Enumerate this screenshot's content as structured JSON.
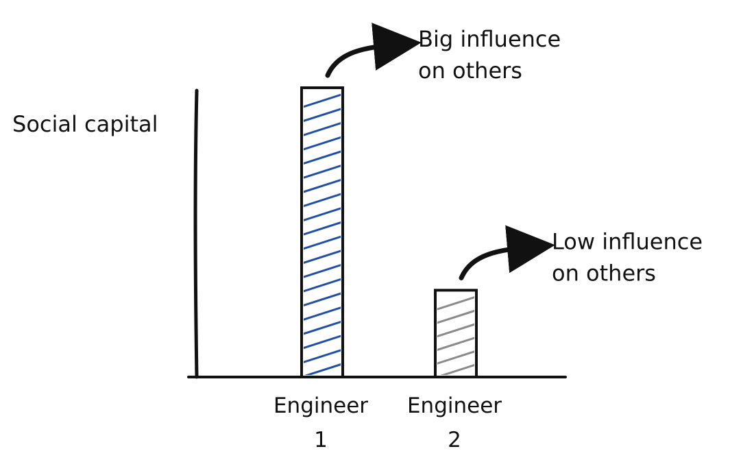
{
  "chart_data": {
    "type": "bar",
    "title": "",
    "xlabel": "",
    "ylabel": "Social capital",
    "categories": [
      [
        "Engineer",
        "1"
      ],
      [
        "Engineer",
        "2"
      ]
    ],
    "values": [
      10,
      3
    ],
    "ylim": [
      0,
      10.5
    ],
    "grid": false,
    "legend": "none",
    "bar_colors": [
      "#1f4fa8",
      "#8a8a8a"
    ],
    "annotations": [
      {
        "bar": 0,
        "lines": [
          "Big influence",
          "on others"
        ]
      },
      {
        "bar": 1,
        "lines": [
          "Low influence",
          "on others"
        ]
      }
    ],
    "axis_color": "#111111"
  }
}
